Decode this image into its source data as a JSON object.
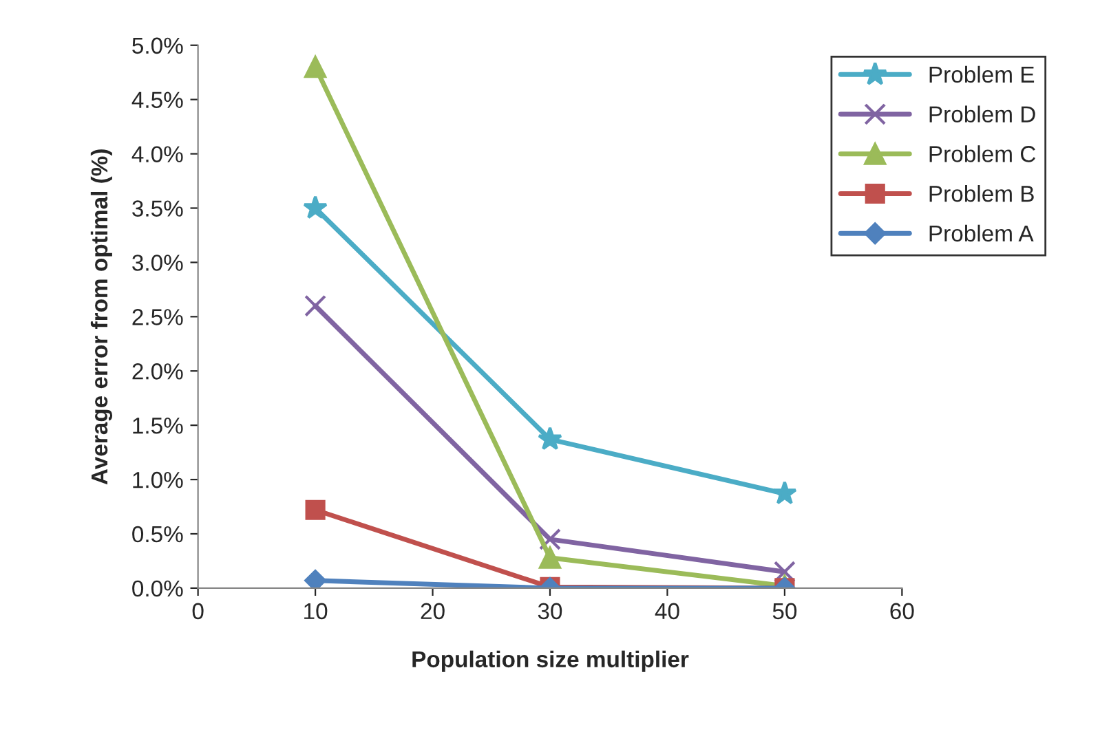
{
  "chart_data": {
    "type": "line",
    "xlabel": "Population size multiplier",
    "ylabel": "Average error from optimal (%)",
    "x": [
      10,
      30,
      50
    ],
    "series": [
      {
        "name": "Problem E",
        "color": "#4bacc6",
        "marker": "star",
        "values": [
          3.5,
          1.37,
          0.87
        ]
      },
      {
        "name": "Problem D",
        "color": "#8064a2",
        "marker": "cross",
        "values": [
          2.6,
          0.45,
          0.15
        ]
      },
      {
        "name": "Problem C",
        "color": "#9bbb59",
        "marker": "triangle",
        "values": [
          4.8,
          0.28,
          0.02
        ]
      },
      {
        "name": "Problem B",
        "color": "#c0504d",
        "marker": "square",
        "values": [
          0.72,
          0.01,
          0.0
        ]
      },
      {
        "name": "Problem A",
        "color": "#4f81bd",
        "marker": "diamond",
        "values": [
          0.07,
          0.0,
          0.0
        ]
      }
    ],
    "xlim": [
      0,
      60
    ],
    "xticks": [
      0,
      10,
      20,
      30,
      40,
      50,
      60
    ],
    "ylim": [
      0,
      5
    ],
    "yticks": [
      {
        "value": 0,
        "label": "0.0%"
      },
      {
        "value": 0.5,
        "label": "0.5%"
      },
      {
        "value": 1,
        "label": "1.0%"
      },
      {
        "value": 1.5,
        "label": "1.5%"
      },
      {
        "value": 2,
        "label": "2.0%"
      },
      {
        "value": 2.5,
        "label": "2.5%"
      },
      {
        "value": 3,
        "label": "3.0%"
      },
      {
        "value": 3.5,
        "label": "3.5%"
      },
      {
        "value": 4,
        "label": "4.0%"
      },
      {
        "value": 4.5,
        "label": "4.5%"
      },
      {
        "value": 5,
        "label": "5.0%"
      }
    ],
    "grid": false,
    "legend": "top right"
  }
}
